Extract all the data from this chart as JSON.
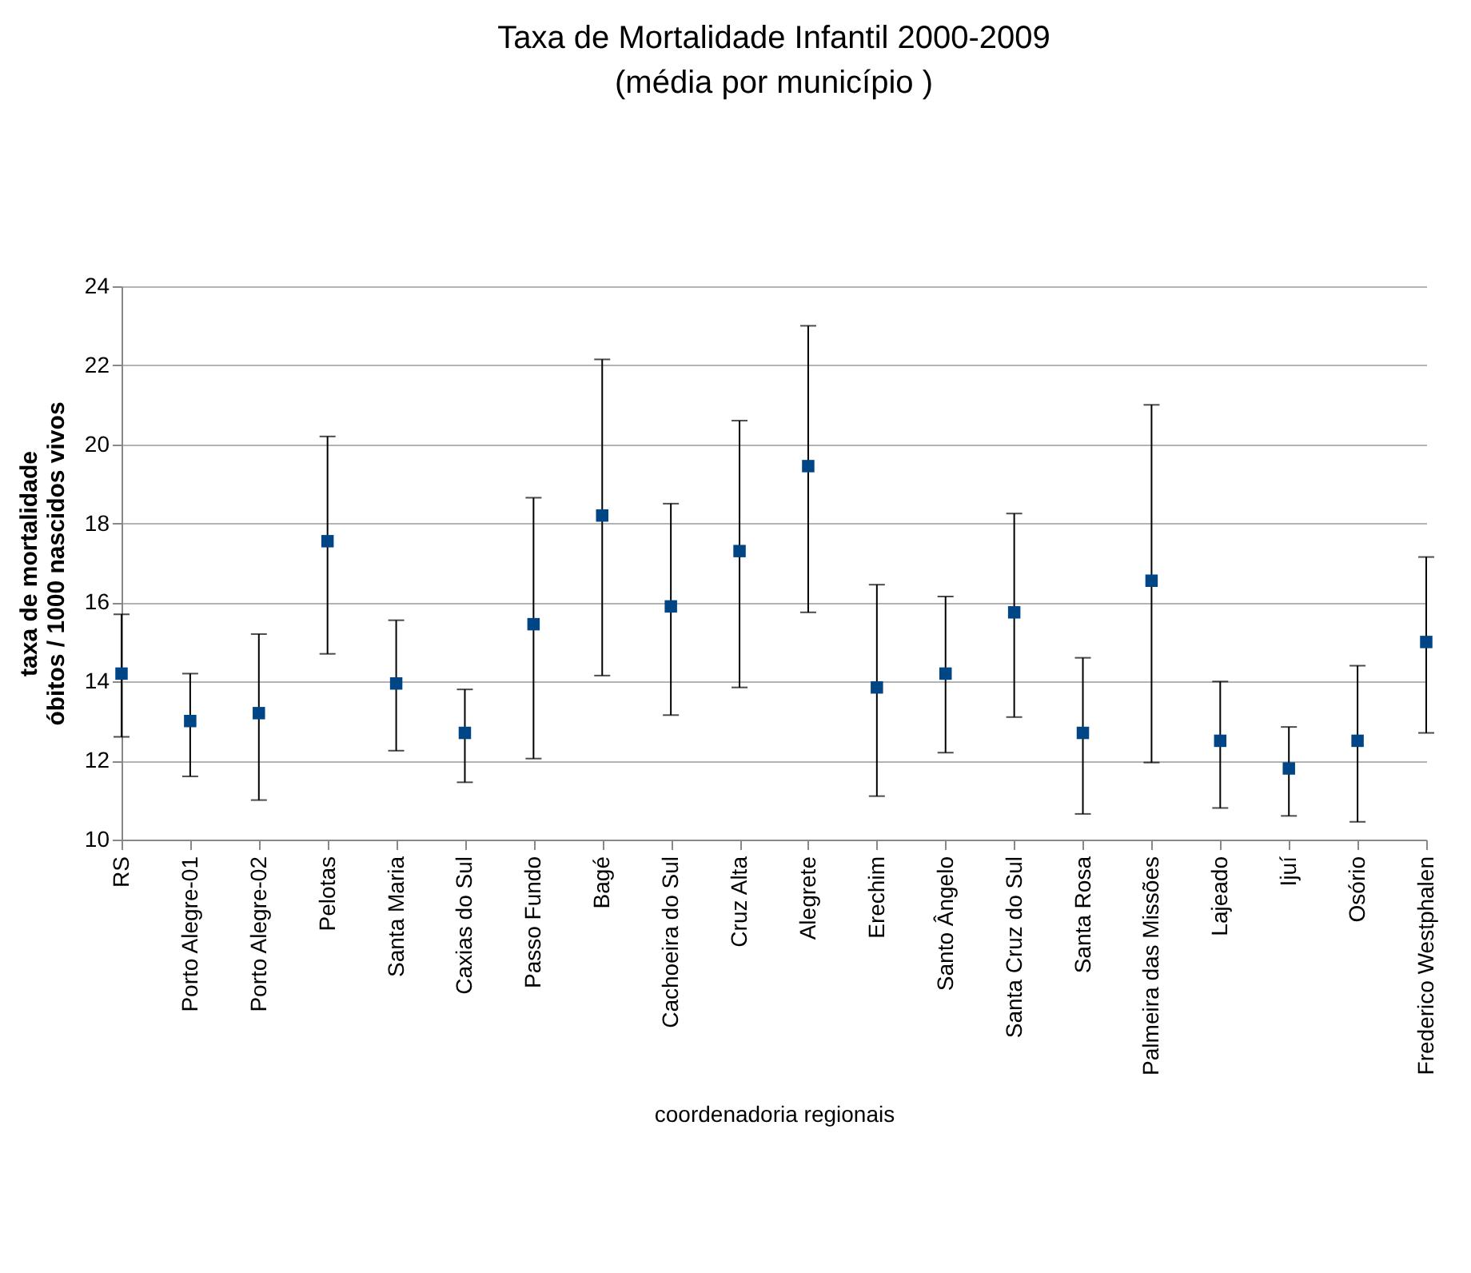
{
  "chart_data": {
    "type": "scatter",
    "title": "Taxa de Mortalidade Infantil 2000-2009",
    "subtitle": "(média por município )",
    "xlabel": "coordenadoria regionais",
    "ylabel": "taxa de mortalidade\nóbitos / 1000 nascidos vivos",
    "categories": [
      "RS",
      "Porto Alegre-01",
      "Porto Alegre-02",
      "Pelotas",
      "Santa Maria",
      "Caxias do Sul",
      "Passo Fundo",
      "Bagé",
      "Cachoeira do Sul",
      "Cruz Alta",
      "Alegrete",
      "Erechim",
      "Santo Ângelo",
      "Santa Cruz do Sul",
      "Santa Rosa",
      "Palmeira das Missões",
      "Lajeado",
      "Ijuí",
      "Osório",
      "Frederico Westphalen"
    ],
    "series": [
      {
        "color": "#004586",
        "values": [
          14.2,
          13.0,
          13.2,
          17.55,
          13.95,
          12.7,
          15.45,
          18.2,
          15.9,
          17.3,
          19.45,
          13.85,
          14.2,
          15.75,
          12.7,
          16.55,
          12.5,
          11.8,
          12.5,
          15.0
        ],
        "errors": [
          [
            12.6,
            15.7
          ],
          [
            11.6,
            14.2
          ],
          [
            11.0,
            15.2
          ],
          [
            14.7,
            20.2
          ],
          [
            12.25,
            15.55
          ],
          [
            11.45,
            13.8
          ],
          [
            12.05,
            18.65
          ],
          [
            14.15,
            22.15
          ],
          [
            13.15,
            18.5
          ],
          [
            13.85,
            20.6
          ],
          [
            15.75,
            23.0
          ],
          [
            11.1,
            16.45
          ],
          [
            12.2,
            16.15
          ],
          [
            13.1,
            18.25
          ],
          [
            10.65,
            14.6
          ],
          [
            11.95,
            21.0
          ],
          [
            10.8,
            14.0
          ],
          [
            10.6,
            12.85
          ],
          [
            10.45,
            14.4
          ],
          [
            12.7,
            17.15
          ]
        ]
      }
    ],
    "ylim": [
      10,
      24
    ],
    "yticks": [
      10,
      12,
      14,
      16,
      18,
      20,
      22,
      24
    ],
    "grid": "y",
    "marker": "square"
  }
}
